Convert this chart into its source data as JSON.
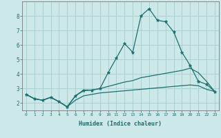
{
  "xlabel": "Humidex (Indice chaleur)",
  "x_values": [
    0,
    1,
    2,
    3,
    4,
    5,
    6,
    7,
    8,
    9,
    10,
    11,
    12,
    13,
    14,
    15,
    16,
    17,
    18,
    19,
    20,
    21,
    22,
    23
  ],
  "line1": [
    2.6,
    2.3,
    2.2,
    2.4,
    2.1,
    1.75,
    2.5,
    2.9,
    2.9,
    3.0,
    4.1,
    5.1,
    6.1,
    5.5,
    8.0,
    8.5,
    7.7,
    7.6,
    6.9,
    5.5,
    4.6,
    3.5,
    3.3,
    2.8
  ],
  "line2": [
    2.6,
    2.3,
    2.2,
    2.4,
    2.1,
    1.75,
    2.5,
    2.85,
    2.9,
    3.0,
    3.15,
    3.3,
    3.45,
    3.55,
    3.75,
    3.85,
    3.95,
    4.05,
    4.15,
    4.25,
    4.4,
    4.1,
    3.5,
    2.8
  ],
  "line3": [
    2.6,
    2.3,
    2.2,
    2.4,
    2.1,
    1.75,
    2.2,
    2.5,
    2.6,
    2.7,
    2.75,
    2.8,
    2.85,
    2.9,
    2.95,
    3.0,
    3.05,
    3.1,
    3.15,
    3.2,
    3.25,
    3.2,
    2.95,
    2.8
  ],
  "line_color": "#1a7070",
  "bg_color": "#cce8e8",
  "grid_color": "#aad0d0",
  "ylim": [
    1.5,
    9.0
  ],
  "xlim": [
    -0.5,
    23.5
  ],
  "yticks": [
    2,
    3,
    4,
    5,
    6,
    7,
    8
  ],
  "xticks": [
    0,
    1,
    2,
    3,
    4,
    5,
    6,
    7,
    8,
    9,
    10,
    11,
    12,
    13,
    14,
    15,
    16,
    17,
    18,
    19,
    20,
    21,
    22,
    23
  ],
  "marker": "*",
  "markersize": 3.5,
  "linewidth": 0.9
}
